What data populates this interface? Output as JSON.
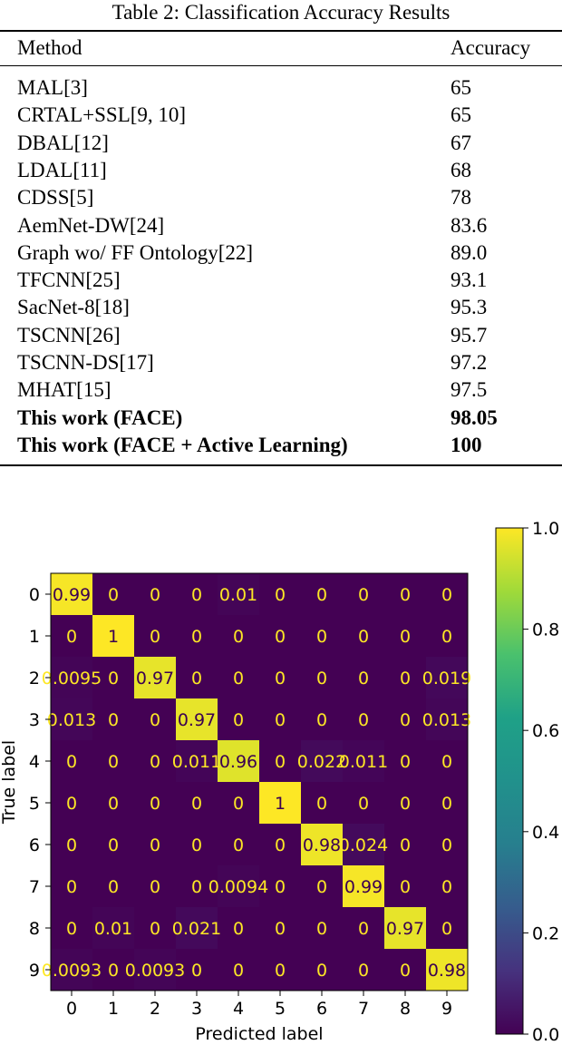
{
  "table": {
    "caption": "Table 2: Classification Accuracy Results",
    "header": {
      "method": "Method",
      "accuracy": "Accuracy"
    },
    "rows": [
      {
        "method": "MAL[3]",
        "accuracy": "65",
        "bold": false
      },
      {
        "method": "CRTAL+SSL[9, 10]",
        "accuracy": "65",
        "bold": false
      },
      {
        "method": "DBAL[12]",
        "accuracy": "67",
        "bold": false
      },
      {
        "method": "LDAL[11]",
        "accuracy": "68",
        "bold": false
      },
      {
        "method": "CDSS[5]",
        "accuracy": "78",
        "bold": false
      },
      {
        "method": "AemNet-DW[24]",
        "accuracy": "83.6",
        "bold": false
      },
      {
        "method": "Graph wo/ FF Ontology[22]",
        "accuracy": "89.0",
        "bold": false
      },
      {
        "method": "TFCNN[25]",
        "accuracy": "93.1",
        "bold": false
      },
      {
        "method": "SacNet-8[18]",
        "accuracy": "95.3",
        "bold": false
      },
      {
        "method": "TSCNN[26]",
        "accuracy": "95.7",
        "bold": false
      },
      {
        "method": "TSCNN-DS[17]",
        "accuracy": "97.2",
        "bold": false
      },
      {
        "method": "MHAT[15]",
        "accuracy": "97.5",
        "bold": false
      },
      {
        "method": "This work (FACE)",
        "accuracy": "98.05",
        "bold": true
      },
      {
        "method": "This work (FACE + Active Learning)",
        "accuracy": "100",
        "bold": true
      }
    ]
  },
  "chart_data": {
    "type": "heatmap",
    "xlabel": "Predicted label",
    "ylabel": "True label",
    "x_ticks": [
      "0",
      "1",
      "2",
      "3",
      "4",
      "5",
      "6",
      "7",
      "8",
      "9"
    ],
    "y_ticks": [
      "0",
      "1",
      "2",
      "3",
      "4",
      "5",
      "6",
      "7",
      "8",
      "9"
    ],
    "cell_labels": [
      [
        "0.99",
        "0",
        "0",
        "0",
        "0.01",
        "0",
        "0",
        "0",
        "0",
        "0"
      ],
      [
        "0",
        "1",
        "0",
        "0",
        "0",
        "0",
        "0",
        "0",
        "0",
        "0"
      ],
      [
        "0.0095",
        "0",
        "0.97",
        "0",
        "0",
        "0",
        "0",
        "0",
        "0",
        "0.019"
      ],
      [
        "0.013",
        "0",
        "0",
        "0.97",
        "0",
        "0",
        "0",
        "0",
        "0",
        "0.013"
      ],
      [
        "0",
        "0",
        "0",
        "0.011",
        "0.96",
        "0",
        "0.022",
        "0.011",
        "0",
        "0"
      ],
      [
        "0",
        "0",
        "0",
        "0",
        "0",
        "1",
        "0",
        "0",
        "0",
        "0"
      ],
      [
        "0",
        "0",
        "0",
        "0",
        "0",
        "0",
        "0.98",
        "0.024",
        "0",
        "0"
      ],
      [
        "0",
        "0",
        "0",
        "0",
        "0.0094",
        "0",
        "0",
        "0.99",
        "0",
        "0"
      ],
      [
        "0",
        "0.01",
        "0",
        "0.021",
        "0",
        "0",
        "0",
        "0",
        "0.97",
        "0"
      ],
      [
        "0.0093",
        "0",
        "0.0093",
        "0",
        "0",
        "0",
        "0",
        "0",
        "0",
        "0.98"
      ]
    ],
    "colorbar": {
      "colormap": "viridis",
      "range": [
        0.0,
        1.0
      ],
      "ticks": [
        "0.0",
        "0.2",
        "0.4",
        "0.6",
        "0.8",
        "1.0"
      ]
    }
  }
}
